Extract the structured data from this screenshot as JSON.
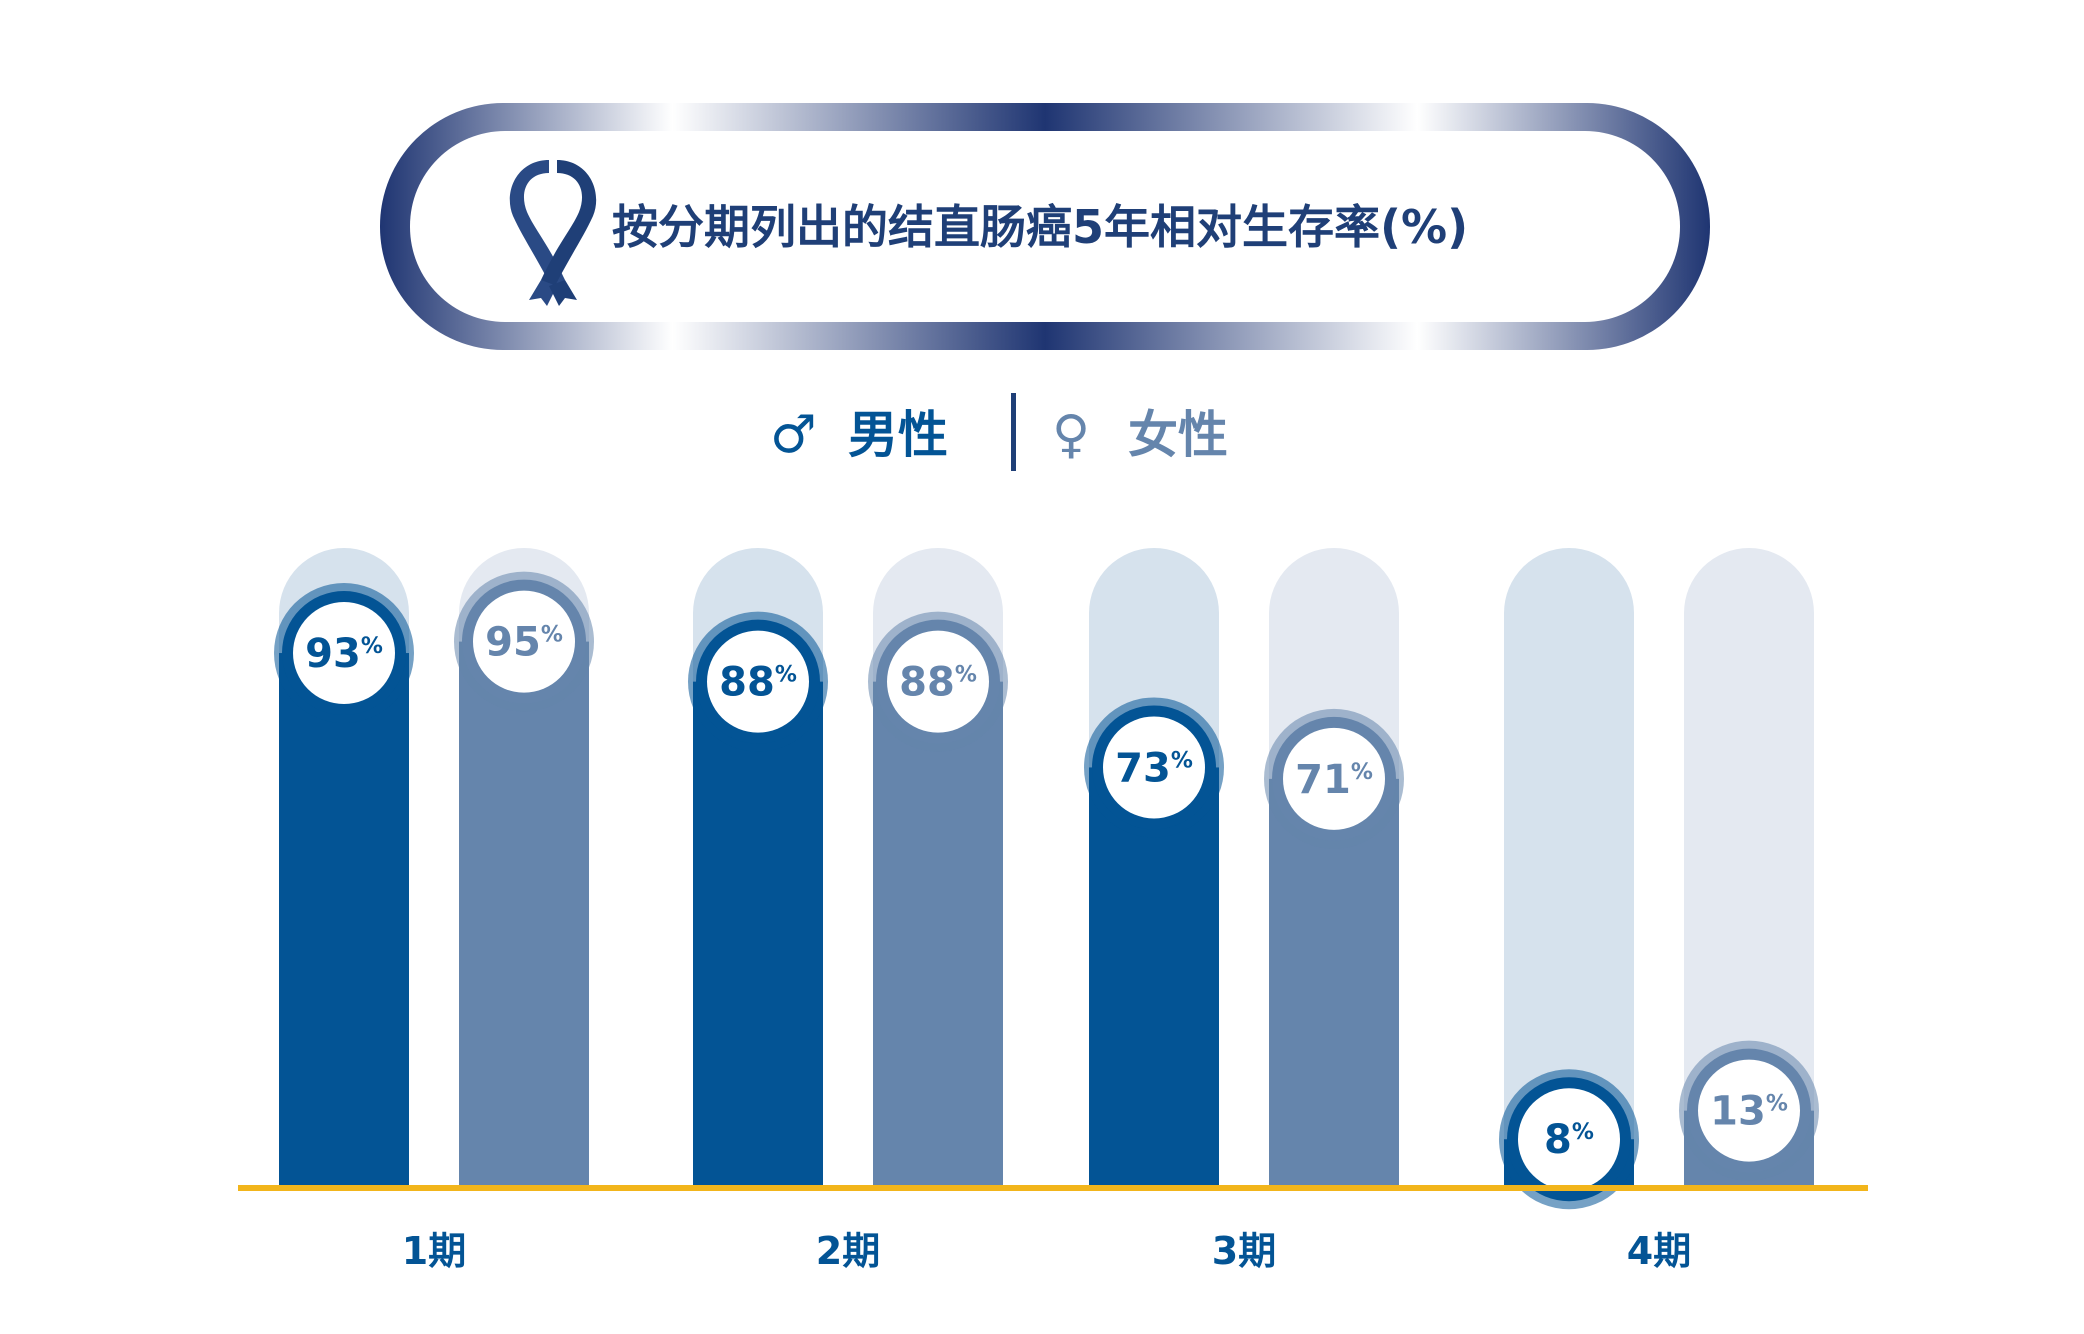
{
  "chart_data": {
    "type": "bar",
    "title": "按分期列出的结直肠癌5年相对生存率(%)",
    "categories": [
      "1期",
      "2期",
      "3期",
      "4期"
    ],
    "series": [
      {
        "name": "男性",
        "symbol": "♂",
        "values": [
          93,
          88,
          73,
          8
        ],
        "color": "#035495",
        "track": "#d6e2ed"
      },
      {
        "name": "女性",
        "symbol": "♀",
        "values": [
          95,
          88,
          71,
          13
        ],
        "color": "#6585ac",
        "track": "#e4e9f1"
      }
    ],
    "value_suffix": "%",
    "ylim": [
      0,
      100
    ],
    "baseline_color": "#f2b51b",
    "title_color": "#1f3f77"
  }
}
